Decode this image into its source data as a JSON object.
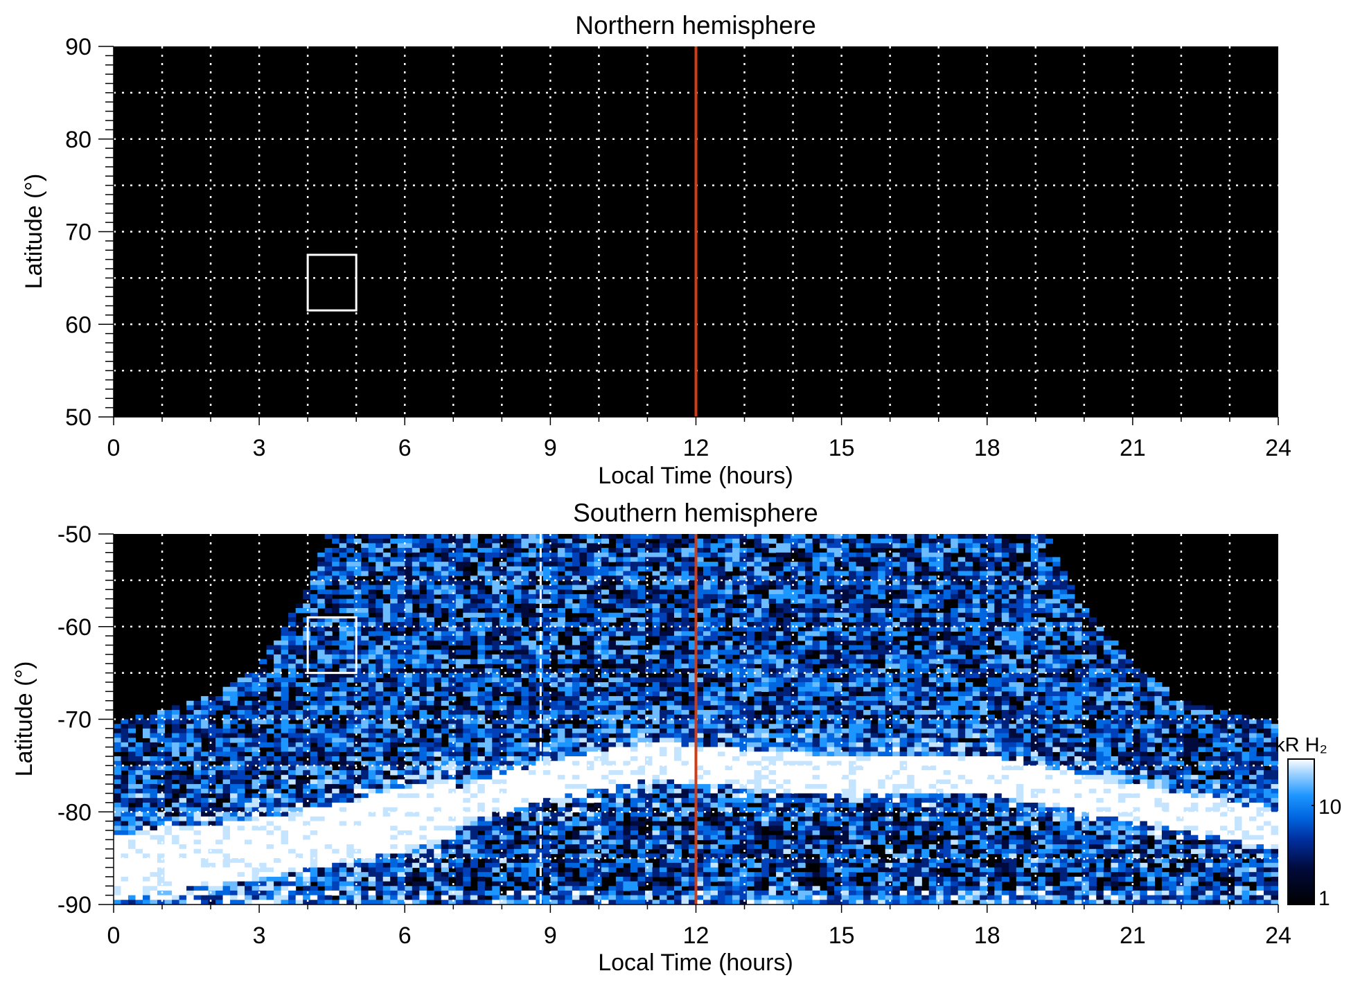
{
  "chart_data": [
    {
      "type": "heatmap",
      "title": "Northern hemisphere",
      "xlabel": "Local Time (hours)",
      "ylabel": "Latitude (°)",
      "xlim": [
        0,
        24
      ],
      "ylim": [
        50,
        90
      ],
      "xticks": [
        "0",
        "3",
        "6",
        "9",
        "12",
        "15",
        "18",
        "21",
        "24"
      ],
      "yticks": [
        "90",
        "80",
        "70",
        "60",
        "50"
      ],
      "grid": true,
      "values": "no emission (all black)",
      "noon_line_lt": 12,
      "box": {
        "lt": [
          4,
          5
        ],
        "lat": [
          61.5,
          67.5
        ]
      }
    },
    {
      "type": "heatmap",
      "title": "Southern hemisphere",
      "xlabel": "Local Time (hours)",
      "ylabel": "Latitude (°)",
      "xlim": [
        0,
        24
      ],
      "ylim": [
        -90,
        -50
      ],
      "xticks": [
        "0",
        "3",
        "6",
        "9",
        "12",
        "15",
        "18",
        "21",
        "24"
      ],
      "yticks": [
        "-50",
        "-60",
        "-70",
        "-80",
        "-90"
      ],
      "grid": true,
      "noon_line_lt": 12,
      "dashed_line_lt": 8.8,
      "box": {
        "lt": [
          4,
          5
        ],
        "lat": [
          -65,
          -59
        ]
      },
      "coverage_boundary": {
        "lt": [
          0,
          2,
          3,
          4,
          4.4,
          19.2,
          20,
          21,
          22,
          24
        ],
        "lat": [
          -70.5,
          -67.5,
          -64,
          -56,
          -50,
          -50,
          -58,
          -64,
          -68,
          -70.5
        ]
      },
      "auroral_oval_center": {
        "lt": [
          0,
          3,
          6,
          9,
          11,
          12,
          15,
          18,
          21,
          24
        ],
        "lat": [
          -86,
          -84,
          -81,
          -76.5,
          -74.5,
          -75,
          -76,
          -76,
          -79,
          -82
        ]
      },
      "colorbar": {
        "label": "kR H₂",
        "scale": "log",
        "range": [
          1,
          25
        ],
        "ticks": [
          "10",
          "1"
        ],
        "colors": [
          "#000000",
          "#000a3c",
          "#0030a0",
          "#0066e0",
          "#1e96ff",
          "#9fd2ff",
          "#ffffff"
        ]
      }
    }
  ],
  "colors": {
    "noon_line": "#d23c14",
    "grid": "#ffffff",
    "background": "#000000"
  }
}
